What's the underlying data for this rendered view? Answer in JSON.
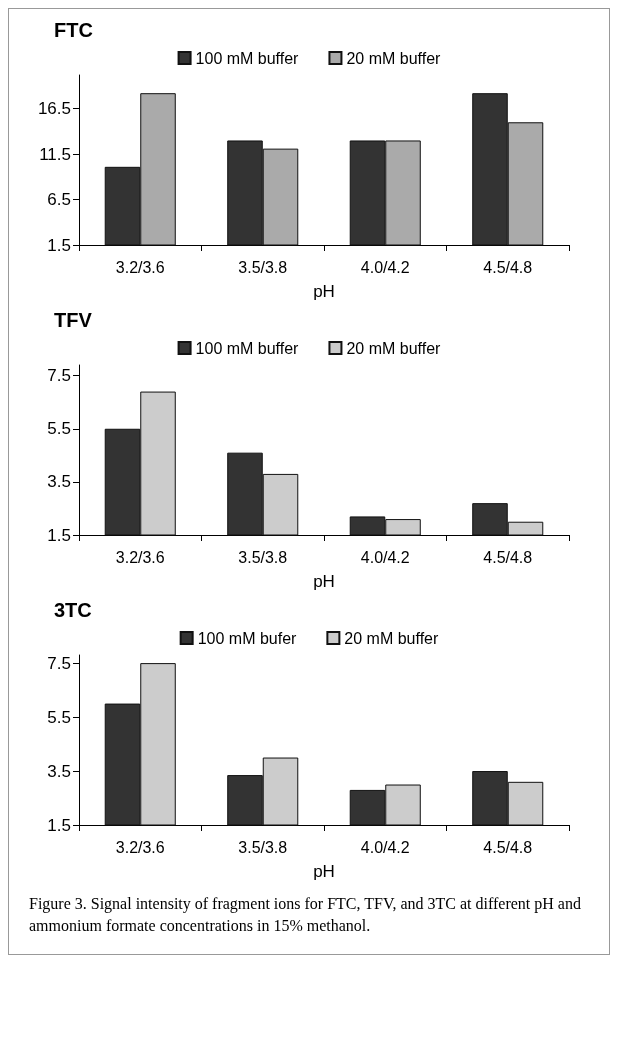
{
  "chart_data": [
    {
      "type": "bar",
      "title": "FTC",
      "xlabel": "pH",
      "categories": [
        "3.2/3.6",
        "3.5/3.8",
        "4.0/4.2",
        "4.5/4.8"
      ],
      "series": [
        {
          "name": "100 mM buffer",
          "color": "#333333",
          "values": [
            10.1,
            13.0,
            13.0,
            18.2
          ]
        },
        {
          "name": "20 mM buffer",
          "color": "#aaaaaa",
          "values": [
            18.2,
            12.1,
            13.0,
            15.0
          ]
        }
      ],
      "ylim": [
        1.5,
        20.2
      ],
      "yticks": [
        1.5,
        6.5,
        11.5,
        16.5
      ],
      "legend": "top",
      "grid": false
    },
    {
      "type": "bar",
      "title": "TFV",
      "xlabel": "pH",
      "categories": [
        "3.2/3.6",
        "3.5/3.8",
        "4.0/4.2",
        "4.5/4.8"
      ],
      "series": [
        {
          "name": "100 mM buffer",
          "color": "#333333",
          "values": [
            5.5,
            4.6,
            2.2,
            2.7
          ]
        },
        {
          "name": "20 mM buffer",
          "color": "#cccccc",
          "values": [
            6.9,
            3.8,
            2.1,
            2.0
          ]
        }
      ],
      "ylim": [
        1.5,
        7.9
      ],
      "yticks": [
        1.5,
        3.5,
        5.5,
        7.5
      ],
      "legend": "top",
      "grid": false
    },
    {
      "type": "bar",
      "title": "3TC",
      "xlabel": "pH",
      "categories": [
        "3.2/3.6",
        "3.5/3.8",
        "4.0/4.2",
        "4.5/4.8"
      ],
      "series": [
        {
          "name": "100 mM bufer",
          "color": "#333333",
          "values": [
            6.0,
            3.35,
            2.8,
            3.5
          ]
        },
        {
          "name": "20 mM buffer",
          "color": "#cccccc",
          "values": [
            7.5,
            4.0,
            3.0,
            3.1
          ]
        }
      ],
      "ylim": [
        1.5,
        7.8
      ],
      "yticks": [
        1.5,
        3.5,
        5.5,
        7.5
      ],
      "legend": "top",
      "grid": false,
      "annotations": [
        "Figure 3. Signal intensity of fragment ions for FTC, TFV, and 3TC at different pH and ammonium formate concentrations in 15% methanol."
      ]
    }
  ]
}
